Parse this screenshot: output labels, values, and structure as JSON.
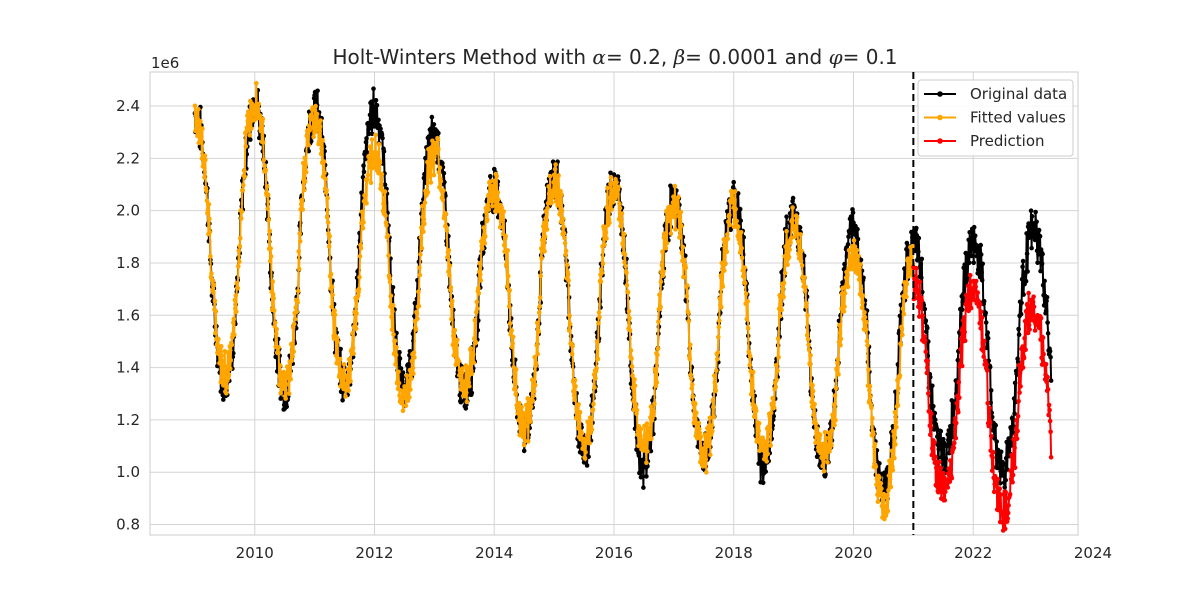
{
  "chart_data": {
    "type": "line",
    "title": {
      "prefix": "Holt-Winters Method with ",
      "alpha_symbol": "α",
      "alpha_value": "= 0.2,",
      "beta_symbol": "β",
      "beta_value": "= 0.0001",
      "and_text": " and ",
      "phi_symbol": "φ",
      "phi_value": "= 0.1"
    },
    "xlabel": "",
    "ylabel": "",
    "y_offset_label": "1e6",
    "xlim": [
      2008.25,
      2023.75
    ],
    "ylim": [
      0.76,
      2.53
    ],
    "x_ticks": [
      2010,
      2012,
      2014,
      2016,
      2018,
      2020,
      2022,
      2024
    ],
    "x_tick_labels": [
      "2010",
      "2012",
      "2014",
      "2016",
      "2018",
      "2020",
      "2022",
      "2024"
    ],
    "y_ticks": [
      0.8,
      1.0,
      1.2,
      1.4,
      1.6,
      1.8,
      2.0,
      2.2,
      2.4
    ],
    "y_tick_labels": [
      "0.8",
      "1.0",
      "1.2",
      "1.4",
      "1.6",
      "1.8",
      "2.0",
      "2.2",
      "2.4"
    ],
    "grid": true,
    "legend_position": "top-right",
    "split_year": 2021.0,
    "series": [
      {
        "name": "Original data",
        "color": "#000000",
        "x_start": 2009.0,
        "x_end": 2023.3,
        "seasonal_peaks": [
          [
            2009.0,
            2.37
          ],
          [
            2010.05,
            2.4
          ],
          [
            2011.0,
            2.39
          ],
          [
            2012.05,
            2.39
          ],
          [
            2013.0,
            2.29
          ],
          [
            2014.0,
            2.09
          ],
          [
            2015.05,
            2.13
          ],
          [
            2016.0,
            2.11
          ],
          [
            2017.0,
            2.03
          ],
          [
            2018.0,
            2.04
          ],
          [
            2019.05,
            1.98
          ],
          [
            2020.0,
            1.91
          ],
          [
            2021.0,
            1.87
          ],
          [
            2022.0,
            1.87
          ],
          [
            2023.0,
            1.92
          ]
        ],
        "seasonal_troughs": [
          [
            2009.5,
            1.36
          ],
          [
            2010.5,
            1.32
          ],
          [
            2011.5,
            1.34
          ],
          [
            2012.5,
            1.33
          ],
          [
            2013.5,
            1.31
          ],
          [
            2014.5,
            1.15
          ],
          [
            2015.5,
            1.09
          ],
          [
            2016.5,
            1.02
          ],
          [
            2017.5,
            1.06
          ],
          [
            2018.5,
            1.03
          ],
          [
            2019.5,
            1.05
          ],
          [
            2020.5,
            0.94
          ],
          [
            2021.5,
            1.07
          ],
          [
            2022.5,
            1.0
          ],
          [
            2023.3,
            1.16
          ]
        ]
      },
      {
        "name": "Fitted values",
        "color": "#ffa500",
        "x_start": 2009.0,
        "x_end": 2021.0,
        "seasonal_peaks": [
          [
            2009.0,
            2.34
          ],
          [
            2010.05,
            2.44
          ],
          [
            2011.0,
            2.37
          ],
          [
            2012.05,
            2.21
          ],
          [
            2013.0,
            2.22
          ],
          [
            2014.0,
            2.08
          ],
          [
            2015.05,
            2.11
          ],
          [
            2016.0,
            2.08
          ],
          [
            2017.0,
            2.02
          ],
          [
            2018.0,
            2.0
          ],
          [
            2019.05,
            1.93
          ],
          [
            2020.0,
            1.83
          ],
          [
            2021.0,
            1.82
          ]
        ],
        "seasonal_troughs": [
          [
            2009.5,
            1.38
          ],
          [
            2010.5,
            1.33
          ],
          [
            2011.5,
            1.35
          ],
          [
            2012.5,
            1.28
          ],
          [
            2013.5,
            1.34
          ],
          [
            2014.5,
            1.18
          ],
          [
            2015.5,
            1.12
          ],
          [
            2016.5,
            1.1
          ],
          [
            2017.5,
            1.07
          ],
          [
            2018.5,
            1.08
          ],
          [
            2019.5,
            1.07
          ],
          [
            2020.5,
            0.88
          ]
        ]
      },
      {
        "name": "Prediction",
        "color": "#ff0000",
        "x_start": 2021.0,
        "x_end": 2023.3,
        "seasonal_peaks": [
          [
            2021.0,
            1.72
          ],
          [
            2022.0,
            1.69
          ],
          [
            2023.0,
            1.62
          ]
        ],
        "seasonal_troughs": [
          [
            2021.5,
            0.92
          ],
          [
            2022.5,
            0.85
          ],
          [
            2023.3,
            0.9
          ]
        ]
      }
    ]
  }
}
